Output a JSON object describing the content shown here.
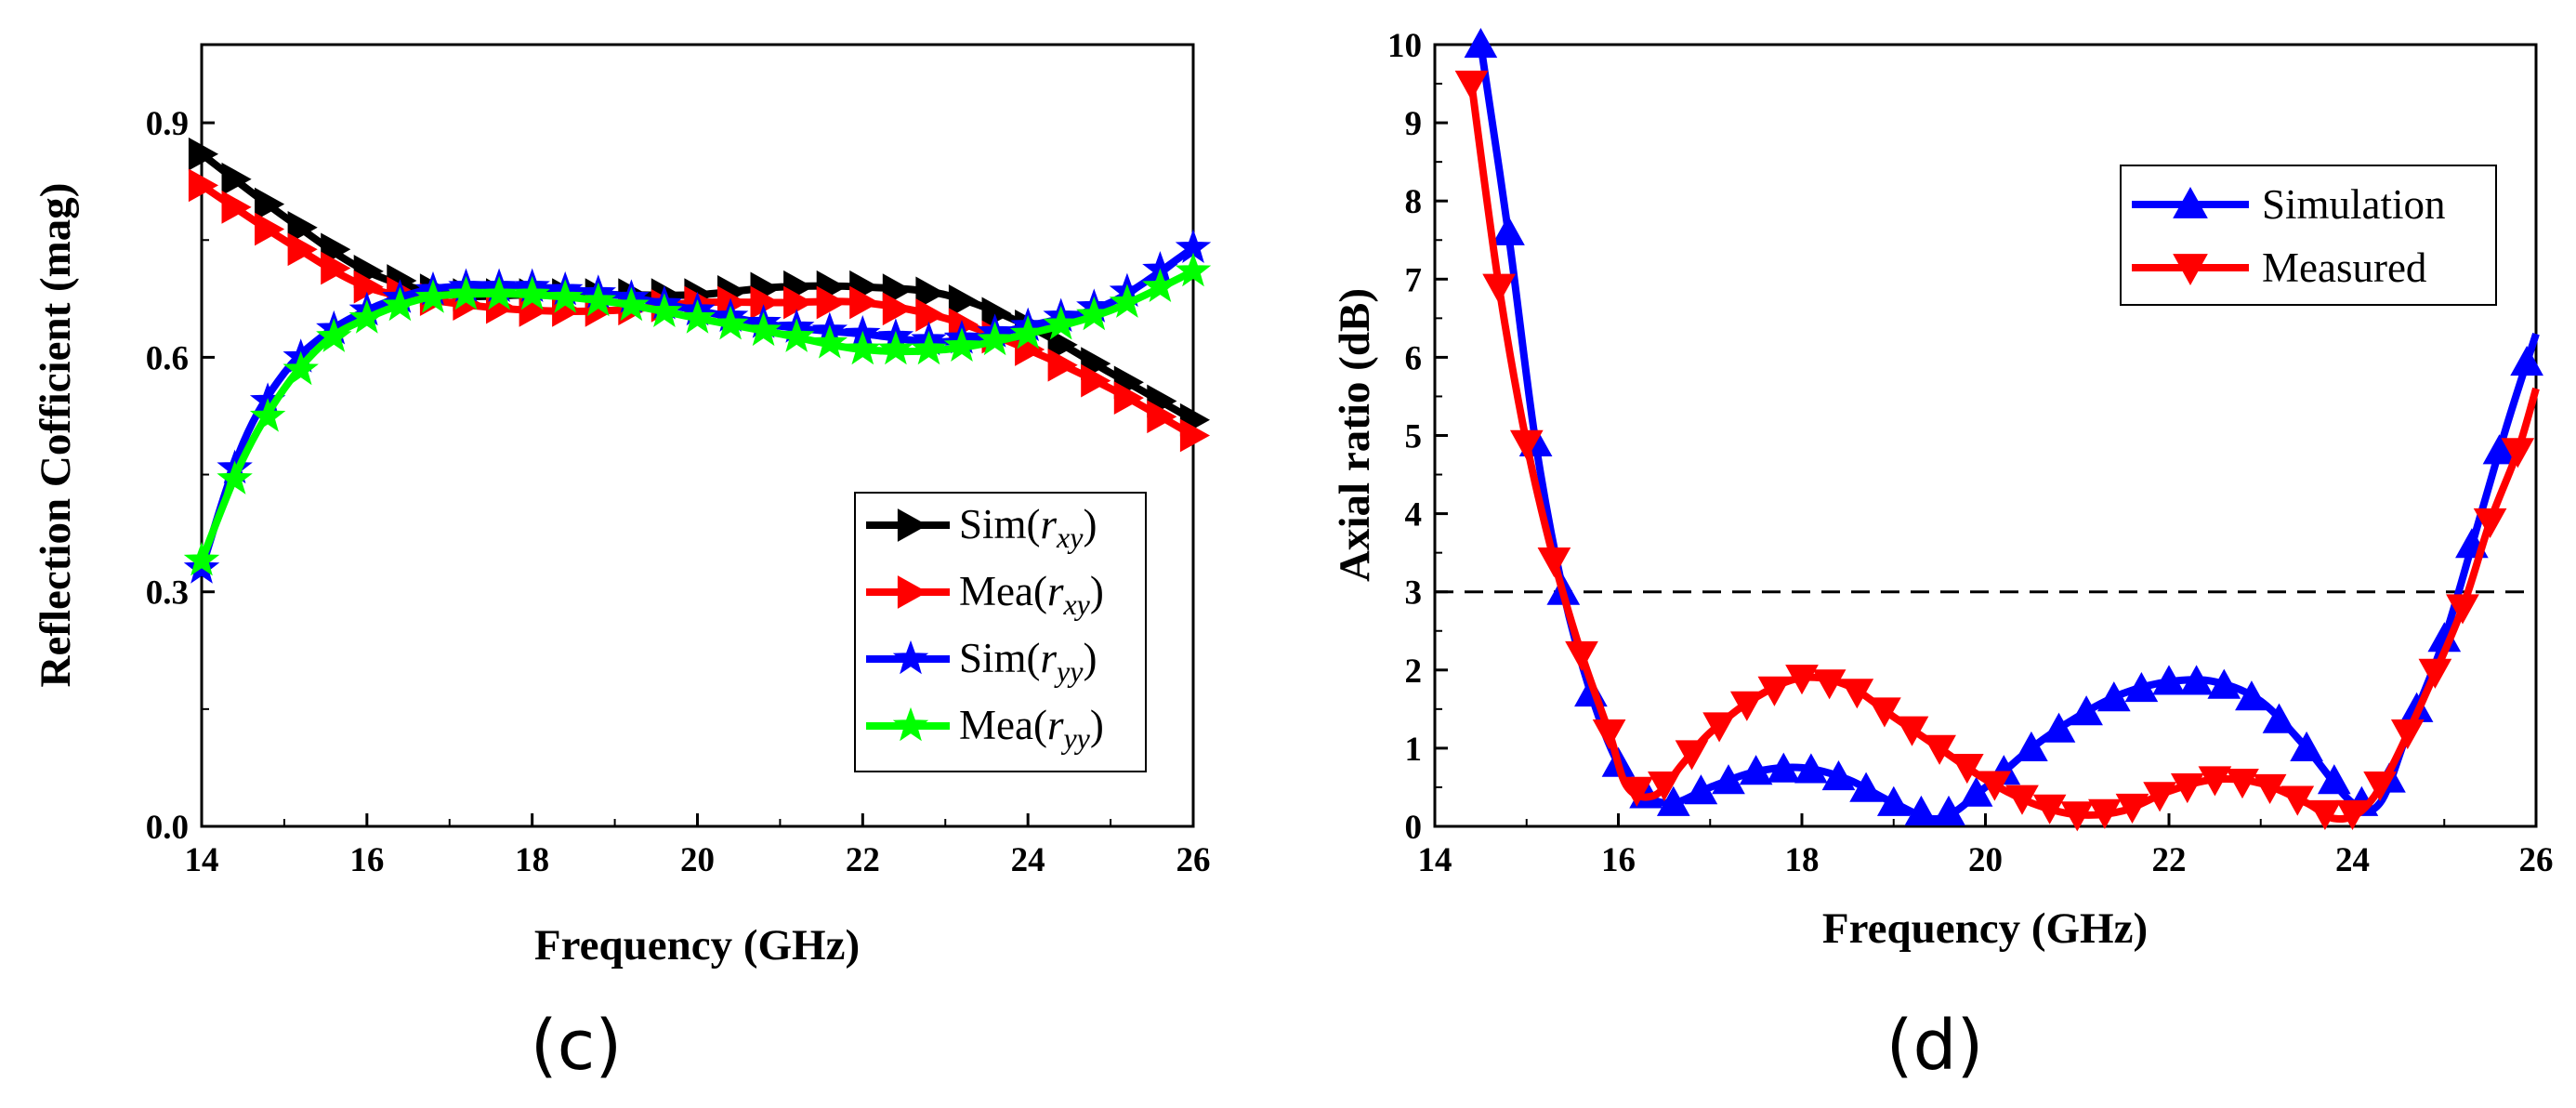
{
  "chart_data": [
    {
      "type": "line",
      "panel_label": "(c)",
      "xlabel": "Frequency (GHz)",
      "ylabel": "Reflection Cofficient (mag)",
      "xlim": [
        14,
        26
      ],
      "ylim": [
        0,
        1.0
      ],
      "xticks": [
        "14",
        "16",
        "18",
        "20",
        "22",
        "24",
        "26"
      ],
      "yticks": [
        "0.0",
        "0.3",
        "0.6",
        "0.9"
      ],
      "legend_position": "bottom-right",
      "series": [
        {
          "name": "Sim(r_xy)",
          "legend_main": "Sim(",
          "legend_sub": "xy",
          "color": "#000000",
          "marker": "triangle-right",
          "x": [
            14,
            15,
            16,
            17,
            18,
            19,
            20,
            21,
            22,
            23,
            24,
            25,
            26
          ],
          "y": [
            0.86,
            0.78,
            0.71,
            0.68,
            0.68,
            0.68,
            0.68,
            0.69,
            0.69,
            0.68,
            0.64,
            0.58,
            0.52
          ]
        },
        {
          "name": "Mea(r_xy)",
          "legend_main": "Mea(",
          "legend_sub": "xy",
          "color": "#ff0000",
          "marker": "triangle-right",
          "x": [
            14,
            15,
            16,
            17,
            18,
            19,
            20,
            21,
            22,
            23,
            24,
            25,
            26
          ],
          "y": [
            0.82,
            0.75,
            0.69,
            0.67,
            0.66,
            0.66,
            0.67,
            0.67,
            0.67,
            0.65,
            0.61,
            0.56,
            0.5
          ]
        },
        {
          "name": "Sim(r_yy)",
          "legend_main": "Sim(",
          "legend_sub": "yy",
          "color": "#0000ff",
          "marker": "star",
          "x": [
            14,
            14.5,
            15,
            15.5,
            16,
            16.5,
            17,
            18,
            19,
            20,
            21,
            22,
            23,
            24,
            25,
            26
          ],
          "y": [
            0.33,
            0.49,
            0.58,
            0.63,
            0.66,
            0.68,
            0.69,
            0.69,
            0.68,
            0.66,
            0.64,
            0.63,
            0.62,
            0.64,
            0.67,
            0.74
          ]
        },
        {
          "name": "Mea(r_yy)",
          "legend_main": "Mea(",
          "legend_sub": "yy",
          "color": "#00ff00",
          "marker": "star",
          "x": [
            14,
            14.5,
            15,
            15.5,
            16,
            16.5,
            17,
            18,
            19,
            20,
            21,
            22,
            23,
            24,
            25,
            26
          ],
          "y": [
            0.34,
            0.47,
            0.56,
            0.62,
            0.65,
            0.67,
            0.68,
            0.68,
            0.67,
            0.65,
            0.63,
            0.61,
            0.61,
            0.63,
            0.66,
            0.71
          ]
        }
      ]
    },
    {
      "type": "line",
      "panel_label": "(d)",
      "xlabel": "Frequency (GHz)",
      "ylabel": "Axial ratio (dB)",
      "xlim": [
        14,
        26
      ],
      "ylim": [
        0,
        10
      ],
      "xticks": [
        "14",
        "16",
        "18",
        "20",
        "22",
        "24",
        "26"
      ],
      "yticks": [
        "0",
        "1",
        "2",
        "3",
        "4",
        "5",
        "6",
        "7",
        "8",
        "9",
        "10"
      ],
      "reference_line": {
        "y": 3,
        "style": "dashed"
      },
      "legend_position": "top-right",
      "series": [
        {
          "name": "Simulation",
          "color": "#0000ff",
          "marker": "triangle-up",
          "x": [
            14.5,
            14.8,
            15.1,
            15.4,
            15.7,
            16.0,
            16.3,
            16.6,
            17.0,
            17.5,
            18.0,
            18.5,
            19.0,
            19.5,
            20.0,
            20.5,
            21.0,
            21.5,
            22.0,
            22.5,
            23.0,
            23.5,
            24.0,
            24.3,
            24.6,
            25.0,
            25.4,
            25.7,
            26.0
          ],
          "y": [
            10.0,
            7.6,
            4.9,
            3.0,
            1.7,
            0.8,
            0.4,
            0.3,
            0.5,
            0.7,
            0.75,
            0.6,
            0.3,
            0.1,
            0.5,
            1.0,
            1.4,
            1.7,
            1.85,
            1.85,
            1.6,
            1.0,
            0.3,
            0.3,
            1.2,
            2.4,
            4.0,
            5.2,
            6.3
          ]
        },
        {
          "name": "Measured",
          "color": "#ff0000",
          "marker": "triangle-down",
          "x": [
            14.4,
            14.7,
            15.0,
            15.3,
            15.6,
            15.9,
            16.1,
            16.4,
            16.7,
            17.0,
            17.5,
            18.0,
            18.5,
            19.0,
            19.5,
            20.0,
            20.5,
            21.0,
            21.5,
            22.0,
            22.5,
            23.0,
            23.5,
            23.8,
            24.1,
            24.4,
            24.8,
            25.2,
            25.5,
            25.8,
            26.0
          ],
          "y": [
            9.5,
            6.9,
            4.9,
            3.4,
            2.2,
            1.2,
            0.5,
            0.4,
            0.8,
            1.2,
            1.65,
            1.9,
            1.8,
            1.4,
            1.0,
            0.6,
            0.3,
            0.15,
            0.2,
            0.45,
            0.6,
            0.55,
            0.3,
            0.1,
            0.2,
            0.7,
            1.7,
            2.8,
            3.9,
            4.8,
            5.6
          ]
        }
      ]
    }
  ]
}
